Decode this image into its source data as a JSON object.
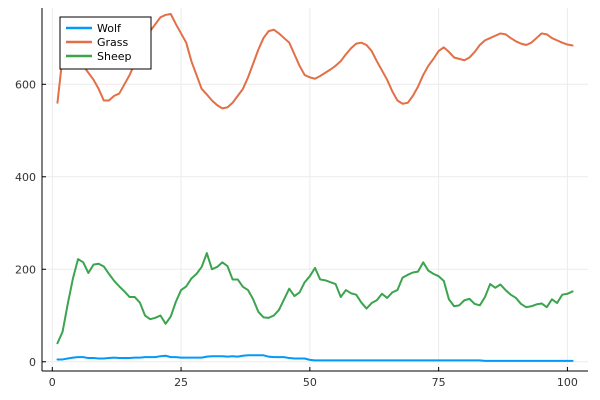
{
  "chart_data": {
    "type": "line",
    "title": "",
    "xlabel": "",
    "ylabel": "",
    "xlim": [
      -2,
      104
    ],
    "ylim": [
      -20,
      765
    ],
    "xticks": [
      0,
      25,
      50,
      75,
      100
    ],
    "yticks": [
      0,
      200,
      400,
      600
    ],
    "grid": true,
    "legend_position": "top-left",
    "x_start": 1,
    "series": [
      {
        "name": "Wolf",
        "color": "#009AFA",
        "values": [
          5,
          5,
          7,
          9,
          10,
          10,
          8,
          8,
          7,
          7,
          8,
          9,
          8,
          8,
          8,
          9,
          9,
          10,
          10,
          10,
          12,
          13,
          10,
          10,
          9,
          9,
          9,
          9,
          9,
          11,
          12,
          12,
          12,
          11,
          12,
          11,
          13,
          14,
          14,
          14,
          14,
          11,
          10,
          10,
          10,
          8,
          7,
          7,
          7,
          4,
          3,
          3,
          3,
          3,
          3,
          3,
          3,
          3,
          3,
          3,
          3,
          3,
          3,
          3,
          3,
          3,
          3,
          3,
          3,
          3,
          3,
          3,
          3,
          3,
          3,
          3,
          3,
          3,
          3,
          3,
          3,
          3,
          3,
          2,
          2,
          2,
          2,
          2,
          2,
          2,
          2,
          2,
          2,
          2,
          2,
          2,
          2,
          2,
          2,
          2,
          2
        ]
      },
      {
        "name": "Grass",
        "color": "#E26F46",
        "values": [
          560,
          660,
          700,
          690,
          660,
          640,
          625,
          610,
          590,
          565,
          565,
          575,
          580,
          600,
          620,
          645,
          665,
          690,
          715,
          730,
          745,
          750,
          752,
          730,
          710,
          690,
          650,
          620,
          590,
          578,
          565,
          555,
          548,
          550,
          560,
          575,
          590,
          615,
          645,
          675,
          700,
          715,
          718,
          710,
          700,
          690,
          665,
          640,
          620,
          615,
          612,
          618,
          625,
          632,
          640,
          650,
          665,
          678,
          688,
          690,
          685,
          672,
          650,
          630,
          610,
          585,
          565,
          558,
          560,
          575,
          595,
          620,
          640,
          655,
          672,
          680,
          670,
          658,
          655,
          652,
          658,
          670,
          685,
          695,
          700,
          705,
          710,
          708,
          700,
          693,
          688,
          685,
          690,
          700,
          710,
          708,
          700,
          695,
          690,
          686,
          684
        ]
      },
      {
        "name": "Sheep",
        "color": "#3BA44E",
        "values": [
          40,
          65,
          125,
          180,
          222,
          215,
          192,
          210,
          212,
          206,
          190,
          175,
          163,
          152,
          140,
          140,
          128,
          100,
          92,
          95,
          100,
          82,
          98,
          130,
          155,
          163,
          180,
          190,
          205,
          235,
          200,
          205,
          215,
          207,
          178,
          178,
          162,
          155,
          135,
          108,
          96,
          95,
          100,
          112,
          135,
          158,
          142,
          150,
          172,
          185,
          203,
          178,
          176,
          172,
          168,
          140,
          155,
          148,
          145,
          128,
          115,
          127,
          133,
          147,
          138,
          150,
          155,
          182,
          188,
          193,
          195,
          215,
          197,
          190,
          185,
          175,
          135,
          120,
          122,
          133,
          136,
          125,
          122,
          140,
          168,
          160,
          167,
          155,
          145,
          138,
          125,
          118,
          120,
          124,
          126,
          118,
          135,
          127,
          145,
          147,
          152
        ]
      }
    ]
  }
}
